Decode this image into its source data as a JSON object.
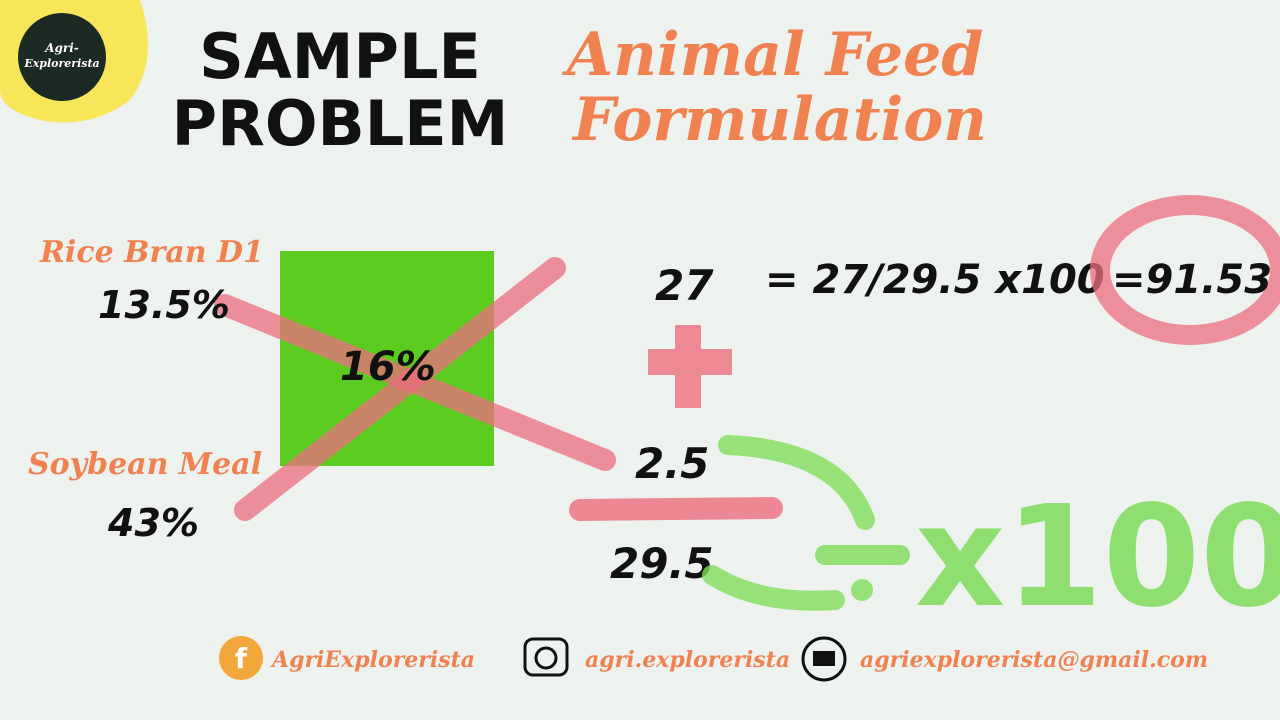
{
  "logo": {
    "line1": "Agri-",
    "line2": "Explorerista"
  },
  "header": {
    "title_line1": "SAMPLE",
    "title_line2": "PROBLEM",
    "subtitle_line1": "Animal Feed",
    "subtitle_line2": "Formulation"
  },
  "square": {
    "top_name": "Rice Bran D1",
    "top_value": "13.5%",
    "bottom_name": "Soybean Meal",
    "bottom_value": "43%",
    "center": "16%"
  },
  "work": {
    "part_a": "27",
    "part_b": "2.5",
    "total": "29.5",
    "formula": "= 27/29.5 x100",
    "result": "=91.53",
    "note": "x100"
  },
  "footer": {
    "facebook": "AgriExplorerista",
    "instagram": "agri.explorerista",
    "email": "agriexplorerista@gmail.com"
  }
}
